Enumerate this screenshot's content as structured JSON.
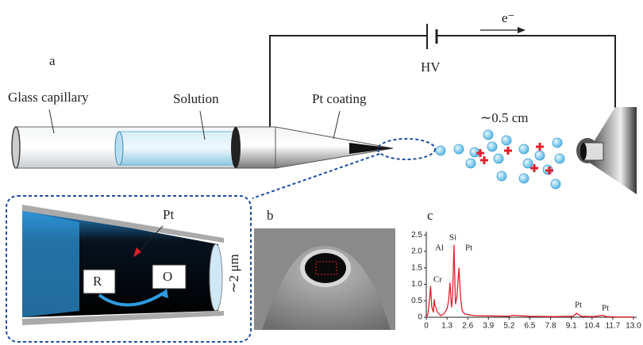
{
  "figure": {
    "panel_a": {
      "label": "a",
      "callouts": [
        "Glass capillary",
        "Solution",
        "Pt coating"
      ],
      "voltage": "HV",
      "electron": "e⁻",
      "distance": "∼0.5 cm",
      "inset": {
        "metal": "Pt",
        "reduced": "R",
        "oxidized": "O",
        "size": "∼2 μm"
      }
    },
    "panel_b": {
      "label": "b"
    },
    "panel_c": {
      "label": "c"
    }
  },
  "chart_data": {
    "type": "line",
    "color": "#e0202a",
    "x": [
      0,
      0.1,
      0.2,
      0.27,
      0.35,
      0.45,
      0.5,
      0.55,
      0.6,
      0.7,
      0.9,
      1.1,
      1.3,
      1.4,
      1.49,
      1.58,
      1.65,
      1.74,
      1.83,
      1.92,
      2.05,
      2.15,
      2.25,
      2.4,
      2.6,
      3.0,
      4.0,
      5.2,
      5.4,
      6.5,
      8.0,
      9.2,
      9.44,
      9.7,
      10.5,
      11.07,
      11.3,
      12.0,
      13.0
    ],
    "values": [
      0,
      0.1,
      0.5,
      0.95,
      0.3,
      0.15,
      0.55,
      0.35,
      0.3,
      0.15,
      0.05,
      0.1,
      0.25,
      0.5,
      1.05,
      0.3,
      0.6,
      2.2,
      0.4,
      0.6,
      1.5,
      0.6,
      0.2,
      0.1,
      0.08,
      0.05,
      0.04,
      0.03,
      0.06,
      0.03,
      0.02,
      0.03,
      0.12,
      0.03,
      0.02,
      0.06,
      0.02,
      0.01,
      0.01
    ],
    "annotations": [
      "Cr",
      "Al",
      "Si",
      "Pt",
      "Pt",
      "Pt"
    ],
    "xlim": [
      0,
      13.2
    ],
    "ylim": [
      0,
      2.6
    ],
    "xticks": [
      0,
      1.3,
      2.6,
      3.9,
      5.2,
      6.5,
      7.8,
      9.1,
      10.4,
      11.7,
      {
        "value": 13,
        "label": "13.0"
      }
    ],
    "yticks": [
      0,
      0.5,
      {
        "value": 1,
        "label": "1.0"
      },
      1.5,
      {
        "value": 2,
        "label": "2.0"
      },
      2.5
    ]
  }
}
